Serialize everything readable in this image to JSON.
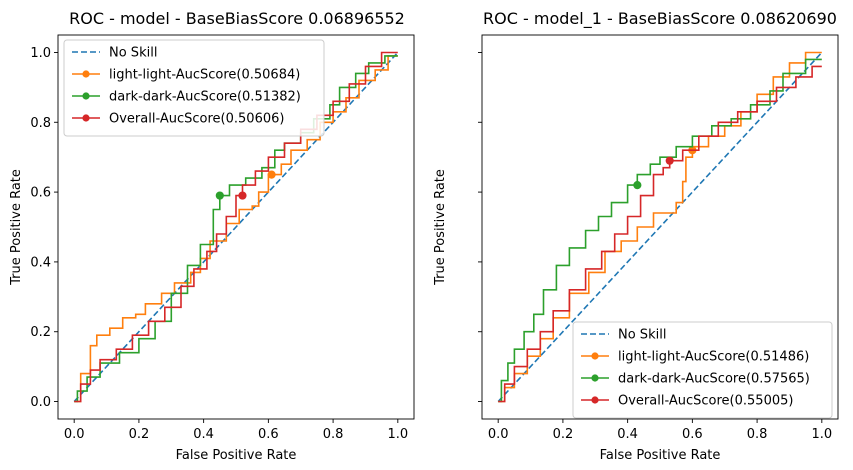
{
  "chart_data": [
    {
      "type": "line",
      "title": "ROC - model - BaseBiasScore 0.06896552",
      "xlabel": "False Positive Rate",
      "ylabel": "True Positive Rate",
      "xlim": [
        -0.05,
        1.05
      ],
      "ylim": [
        -0.05,
        1.05
      ],
      "xticks": [
        "0.0",
        "0.2",
        "0.4",
        "0.6",
        "0.8",
        "1.0"
      ],
      "yticks": [
        "0.0",
        "0.2",
        "0.4",
        "0.6",
        "0.8",
        "1.0"
      ],
      "show_ytick_labels": true,
      "legend_position": "upper left",
      "series": [
        {
          "name": "No Skill",
          "color": "#1f77b4",
          "style": "dashed",
          "x": [
            0,
            1
          ],
          "y": [
            0,
            1
          ]
        },
        {
          "name": "light-light-AucScore(0.50684)",
          "color": "#ff7f0e",
          "style": "step",
          "marker_point": [
            0.61,
            0.65
          ],
          "x": [
            0.0,
            0.02,
            0.02,
            0.05,
            0.05,
            0.07,
            0.07,
            0.11,
            0.11,
            0.15,
            0.15,
            0.19,
            0.19,
            0.22,
            0.22,
            0.27,
            0.27,
            0.31,
            0.31,
            0.36,
            0.36,
            0.39,
            0.39,
            0.42,
            0.42,
            0.47,
            0.47,
            0.51,
            0.51,
            0.55,
            0.55,
            0.57,
            0.57,
            0.6,
            0.6,
            0.64,
            0.64,
            0.67,
            0.67,
            0.72,
            0.72,
            0.76,
            0.76,
            0.8,
            0.8,
            0.84,
            0.84,
            0.88,
            0.88,
            0.93,
            0.93,
            0.97,
            0.97,
            1.0
          ],
          "y": [
            0.0,
            0.0,
            0.08,
            0.08,
            0.16,
            0.16,
            0.19,
            0.19,
            0.21,
            0.21,
            0.24,
            0.24,
            0.25,
            0.25,
            0.28,
            0.28,
            0.31,
            0.31,
            0.34,
            0.34,
            0.37,
            0.37,
            0.41,
            0.41,
            0.46,
            0.46,
            0.51,
            0.51,
            0.55,
            0.55,
            0.56,
            0.56,
            0.6,
            0.6,
            0.65,
            0.65,
            0.68,
            0.68,
            0.72,
            0.72,
            0.75,
            0.75,
            0.8,
            0.8,
            0.83,
            0.83,
            0.87,
            0.87,
            0.92,
            0.92,
            0.95,
            0.95,
            0.99,
            0.99
          ]
        },
        {
          "name": "dark-dark-AucScore(0.51382)",
          "color": "#2ca02c",
          "style": "step",
          "marker_point": [
            0.45,
            0.59
          ],
          "x": [
            0.0,
            0.01,
            0.01,
            0.04,
            0.04,
            0.08,
            0.08,
            0.14,
            0.14,
            0.2,
            0.2,
            0.25,
            0.25,
            0.3,
            0.3,
            0.35,
            0.35,
            0.39,
            0.39,
            0.43,
            0.43,
            0.45,
            0.45,
            0.48,
            0.48,
            0.53,
            0.53,
            0.58,
            0.58,
            0.62,
            0.62,
            0.65,
            0.65,
            0.7,
            0.7,
            0.74,
            0.74,
            0.79,
            0.79,
            0.82,
            0.82,
            0.87,
            0.87,
            0.91,
            0.91,
            0.96,
            0.96,
            1.0
          ],
          "y": [
            0.0,
            0.0,
            0.03,
            0.03,
            0.07,
            0.07,
            0.11,
            0.11,
            0.14,
            0.14,
            0.18,
            0.18,
            0.23,
            0.23,
            0.31,
            0.31,
            0.39,
            0.39,
            0.45,
            0.45,
            0.55,
            0.55,
            0.59,
            0.59,
            0.62,
            0.62,
            0.64,
            0.64,
            0.67,
            0.67,
            0.72,
            0.72,
            0.74,
            0.74,
            0.77,
            0.77,
            0.81,
            0.81,
            0.85,
            0.85,
            0.9,
            0.9,
            0.94,
            0.94,
            0.97,
            0.97,
            0.99,
            0.99
          ]
        },
        {
          "name": "Overall-AucScore(0.50606)",
          "color": "#d62728",
          "style": "step",
          "marker_point": [
            0.52,
            0.59
          ],
          "x": [
            0.0,
            0.02,
            0.02,
            0.05,
            0.05,
            0.08,
            0.08,
            0.13,
            0.13,
            0.18,
            0.18,
            0.23,
            0.23,
            0.28,
            0.28,
            0.33,
            0.33,
            0.37,
            0.37,
            0.41,
            0.41,
            0.44,
            0.44,
            0.47,
            0.47,
            0.5,
            0.5,
            0.52,
            0.52,
            0.56,
            0.56,
            0.6,
            0.6,
            0.65,
            0.65,
            0.7,
            0.7,
            0.75,
            0.75,
            0.8,
            0.8,
            0.85,
            0.85,
            0.9,
            0.9,
            0.95,
            0.95,
            1.0
          ],
          "y": [
            0.0,
            0.0,
            0.05,
            0.05,
            0.09,
            0.09,
            0.12,
            0.12,
            0.15,
            0.15,
            0.19,
            0.19,
            0.23,
            0.23,
            0.27,
            0.27,
            0.33,
            0.33,
            0.38,
            0.38,
            0.43,
            0.43,
            0.48,
            0.48,
            0.53,
            0.53,
            0.59,
            0.59,
            0.62,
            0.62,
            0.66,
            0.66,
            0.7,
            0.7,
            0.74,
            0.74,
            0.78,
            0.78,
            0.82,
            0.82,
            0.86,
            0.86,
            0.91,
            0.91,
            0.96,
            0.96,
            1.0,
            1.0
          ]
        }
      ]
    },
    {
      "type": "line",
      "title": "ROC - model_1 - BaseBiasScore 0.08620690",
      "xlabel": "False Positive Rate",
      "ylabel": "True Positive Rate",
      "xlim": [
        -0.05,
        1.05
      ],
      "ylim": [
        -0.05,
        1.05
      ],
      "xticks": [
        "0.0",
        "0.2",
        "0.4",
        "0.6",
        "0.8",
        "1.0"
      ],
      "yticks": [
        "0.0",
        "0.2",
        "0.4",
        "0.6",
        "0.8",
        "1.0"
      ],
      "show_ytick_labels": false,
      "legend_position": "lower right",
      "series": [
        {
          "name": "No Skill",
          "color": "#1f77b4",
          "style": "dashed",
          "x": [
            0,
            1
          ],
          "y": [
            0,
            1
          ]
        },
        {
          "name": "light-light-AucScore(0.51486)",
          "color": "#ff7f0e",
          "style": "step",
          "marker_point": [
            0.6,
            0.72
          ],
          "x": [
            0.0,
            0.02,
            0.02,
            0.05,
            0.05,
            0.09,
            0.09,
            0.13,
            0.13,
            0.17,
            0.17,
            0.22,
            0.22,
            0.28,
            0.28,
            0.33,
            0.33,
            0.38,
            0.38,
            0.43,
            0.43,
            0.48,
            0.48,
            0.55,
            0.55,
            0.57,
            0.57,
            0.58,
            0.58,
            0.6,
            0.6,
            0.65,
            0.65,
            0.7,
            0.7,
            0.75,
            0.75,
            0.8,
            0.8,
            0.85,
            0.85,
            0.9,
            0.9,
            0.95,
            0.95,
            1.0
          ],
          "y": [
            0.0,
            0.0,
            0.04,
            0.04,
            0.08,
            0.08,
            0.13,
            0.13,
            0.18,
            0.18,
            0.24,
            0.24,
            0.31,
            0.31,
            0.37,
            0.37,
            0.43,
            0.43,
            0.46,
            0.46,
            0.5,
            0.5,
            0.54,
            0.54,
            0.57,
            0.57,
            0.63,
            0.63,
            0.7,
            0.7,
            0.73,
            0.73,
            0.76,
            0.76,
            0.79,
            0.79,
            0.83,
            0.83,
            0.88,
            0.88,
            0.93,
            0.93,
            0.97,
            0.97,
            1.0,
            1.0
          ]
        },
        {
          "name": "dark-dark-AucScore(0.57565)",
          "color": "#2ca02c",
          "style": "step",
          "marker_point": [
            0.43,
            0.62
          ],
          "x": [
            0.0,
            0.01,
            0.01,
            0.03,
            0.03,
            0.05,
            0.05,
            0.08,
            0.08,
            0.11,
            0.11,
            0.14,
            0.14,
            0.18,
            0.18,
            0.22,
            0.22,
            0.27,
            0.27,
            0.31,
            0.31,
            0.35,
            0.35,
            0.4,
            0.4,
            0.43,
            0.43,
            0.47,
            0.47,
            0.5,
            0.5,
            0.55,
            0.55,
            0.6,
            0.6,
            0.66,
            0.66,
            0.72,
            0.72,
            0.78,
            0.78,
            0.84,
            0.84,
            0.88,
            0.88,
            0.95,
            0.95,
            1.0
          ],
          "y": [
            0.0,
            0.0,
            0.06,
            0.06,
            0.11,
            0.11,
            0.15,
            0.15,
            0.2,
            0.2,
            0.25,
            0.25,
            0.32,
            0.32,
            0.39,
            0.39,
            0.44,
            0.44,
            0.49,
            0.49,
            0.53,
            0.53,
            0.57,
            0.57,
            0.62,
            0.62,
            0.65,
            0.65,
            0.68,
            0.68,
            0.7,
            0.7,
            0.73,
            0.73,
            0.76,
            0.76,
            0.79,
            0.79,
            0.81,
            0.81,
            0.85,
            0.85,
            0.89,
            0.89,
            0.94,
            0.94,
            0.98,
            0.98
          ]
        },
        {
          "name": "Overall-AucScore(0.55005)",
          "color": "#d62728",
          "style": "step",
          "marker_point": [
            0.53,
            0.69
          ],
          "x": [
            0.0,
            0.02,
            0.02,
            0.05,
            0.05,
            0.09,
            0.09,
            0.13,
            0.13,
            0.17,
            0.17,
            0.22,
            0.22,
            0.27,
            0.27,
            0.32,
            0.32,
            0.36,
            0.36,
            0.4,
            0.4,
            0.44,
            0.44,
            0.48,
            0.48,
            0.51,
            0.51,
            0.53,
            0.53,
            0.57,
            0.57,
            0.62,
            0.62,
            0.68,
            0.68,
            0.74,
            0.74,
            0.8,
            0.8,
            0.86,
            0.86,
            0.92,
            0.92,
            0.97,
            0.97,
            1.0
          ],
          "y": [
            0.0,
            0.0,
            0.05,
            0.05,
            0.1,
            0.1,
            0.15,
            0.15,
            0.2,
            0.2,
            0.26,
            0.26,
            0.32,
            0.32,
            0.38,
            0.38,
            0.43,
            0.43,
            0.48,
            0.48,
            0.53,
            0.53,
            0.59,
            0.59,
            0.65,
            0.65,
            0.67,
            0.67,
            0.69,
            0.69,
            0.72,
            0.72,
            0.76,
            0.76,
            0.8,
            0.8,
            0.83,
            0.83,
            0.86,
            0.86,
            0.9,
            0.9,
            0.93,
            0.93,
            0.96,
            0.96
          ]
        }
      ]
    }
  ]
}
